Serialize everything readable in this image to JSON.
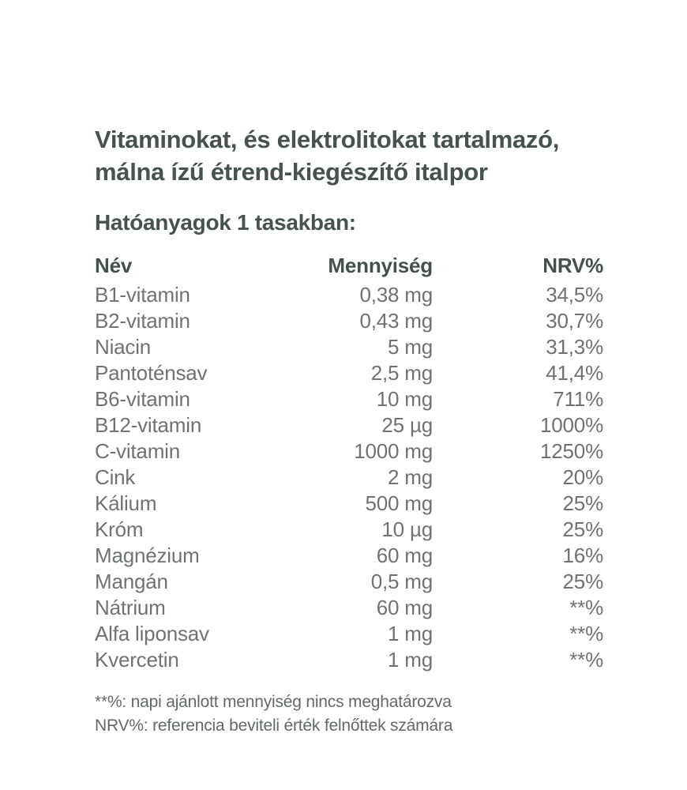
{
  "page": {
    "title_line1": "Vitaminokat, és elektrolitokat tartalmazó,",
    "title_line2": "málna ízű étrend-kiegészítő italpor",
    "section_heading": "Hatóanyagok 1 tasakban:"
  },
  "table": {
    "headers": {
      "name": "Név",
      "amount": "Mennyiség",
      "nrv": "NRV%"
    },
    "rows": [
      {
        "name": "B1-vitamin",
        "amount": "0,38 mg",
        "nrv": "34,5%"
      },
      {
        "name": "B2-vitamin",
        "amount": "0,43 mg",
        "nrv": "30,7%"
      },
      {
        "name": "Niacin",
        "amount": "5 mg",
        "nrv": "31,3%"
      },
      {
        "name": "Pantoténsav",
        "amount": "2,5 mg",
        "nrv": "41,4%"
      },
      {
        "name": "B6-vitamin",
        "amount": "10 mg",
        "nrv": "711%"
      },
      {
        "name": "B12-vitamin",
        "amount": "25 µg",
        "nrv": "1000%"
      },
      {
        "name": "C-vitamin",
        "amount": "1000 mg",
        "nrv": "1250%"
      },
      {
        "name": "Cink",
        "amount": "2 mg",
        "nrv": "20%"
      },
      {
        "name": "Kálium",
        "amount": "500 mg",
        "nrv": "25%"
      },
      {
        "name": "Króm",
        "amount": "10 µg",
        "nrv": "25%"
      },
      {
        "name": "Magnézium",
        "amount": "60 mg",
        "nrv": "16%"
      },
      {
        "name": "Mangán",
        "amount": "0,5 mg",
        "nrv": "25%"
      },
      {
        "name": "Nátrium",
        "amount": "60 mg",
        "nrv": "**%"
      },
      {
        "name": "Alfa liponsav",
        "amount": "1 mg",
        "nrv": "**%"
      },
      {
        "name": "Kvercetin",
        "amount": "1 mg",
        "nrv": "**%"
      }
    ]
  },
  "footnotes": [
    "**%: napi ajánlott mennyiség nincs meghatározva",
    "NRV%: referencia beviteli érték felnőttek számára"
  ],
  "colors": {
    "heading_text": "#46524f",
    "body_text": "#6e7372",
    "footnote_text": "#63686a",
    "background": "#ffffff"
  }
}
